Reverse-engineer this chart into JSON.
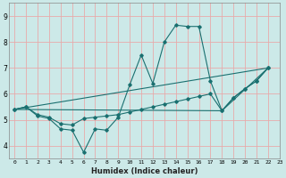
{
  "xlabel": "Humidex (Indice chaleur)",
  "xlim": [
    -0.5,
    23
  ],
  "ylim": [
    3.5,
    9.5
  ],
  "xticks": [
    0,
    1,
    2,
    3,
    4,
    5,
    6,
    7,
    8,
    9,
    10,
    11,
    12,
    13,
    14,
    15,
    16,
    17,
    18,
    19,
    20,
    21,
    22,
    23
  ],
  "yticks": [
    4,
    5,
    6,
    7,
    8,
    9
  ],
  "bg_color": "#cce9e8",
  "grid_color": "#e8aaaa",
  "line_color": "#1a7070",
  "line1_x": [
    0,
    1,
    2,
    3,
    4,
    5,
    6,
    7,
    8,
    9,
    10,
    11,
    12,
    13,
    14,
    15,
    16,
    17,
    18,
    19,
    20,
    21,
    22
  ],
  "line1_y": [
    5.4,
    5.5,
    5.15,
    5.05,
    4.65,
    4.6,
    3.75,
    4.65,
    4.6,
    5.1,
    6.35,
    7.5,
    6.4,
    8.0,
    8.65,
    8.6,
    8.6,
    6.5,
    5.35,
    5.85,
    6.2,
    6.5,
    7.0
  ],
  "line2_x": [
    0,
    1,
    2,
    3,
    4,
    5,
    6,
    7,
    8,
    9,
    10,
    11,
    12,
    13,
    14,
    15,
    16,
    17,
    18,
    19,
    20,
    21,
    22
  ],
  "line2_y": [
    5.4,
    5.5,
    5.2,
    5.1,
    4.85,
    4.8,
    5.05,
    5.1,
    5.15,
    5.2,
    5.3,
    5.4,
    5.5,
    5.6,
    5.7,
    5.8,
    5.9,
    6.0,
    5.35,
    5.85,
    6.2,
    6.5,
    7.0
  ],
  "line3_x": [
    0,
    22
  ],
  "line3_y": [
    5.4,
    7.0
  ],
  "line4_x": [
    0,
    18,
    22
  ],
  "line4_y": [
    5.4,
    5.35,
    7.0
  ]
}
